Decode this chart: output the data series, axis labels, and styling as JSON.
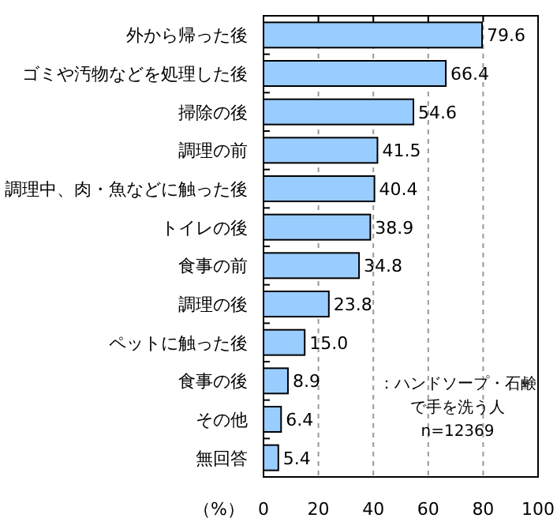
{
  "chart_data": {
    "type": "bar",
    "orientation": "horizontal",
    "xlabel": "（%）",
    "categories": [
      "外から帰った後",
      "ゴミや汚物などを処理した後",
      "掃除の後",
      "調理の前",
      "調理中、肉・魚などに触った後",
      "トイレの後",
      "食事の前",
      "調理の後",
      "ペットに触った後",
      "食事の後",
      "その他",
      "無回答"
    ],
    "values": [
      79.6,
      66.4,
      54.6,
      41.5,
      40.4,
      38.9,
      34.8,
      23.8,
      15.0,
      8.9,
      6.4,
      5.4
    ],
    "color": "#99ccff",
    "grid": "x",
    "value_labels": [
      "79.6",
      "66.4",
      "54.6",
      "41.5",
      "40.4",
      "38.9",
      "34.8",
      "23.8",
      "15.0",
      "8.9",
      "6.4",
      "5.4"
    ],
    "xlim": [
      0,
      100
    ],
    "xticks": [
      0,
      20,
      40,
      60,
      80,
      100
    ],
    "annotations": [
      "：ハンドソープ・石鹸",
      "で手を洗う人",
      "n=12369"
    ]
  }
}
